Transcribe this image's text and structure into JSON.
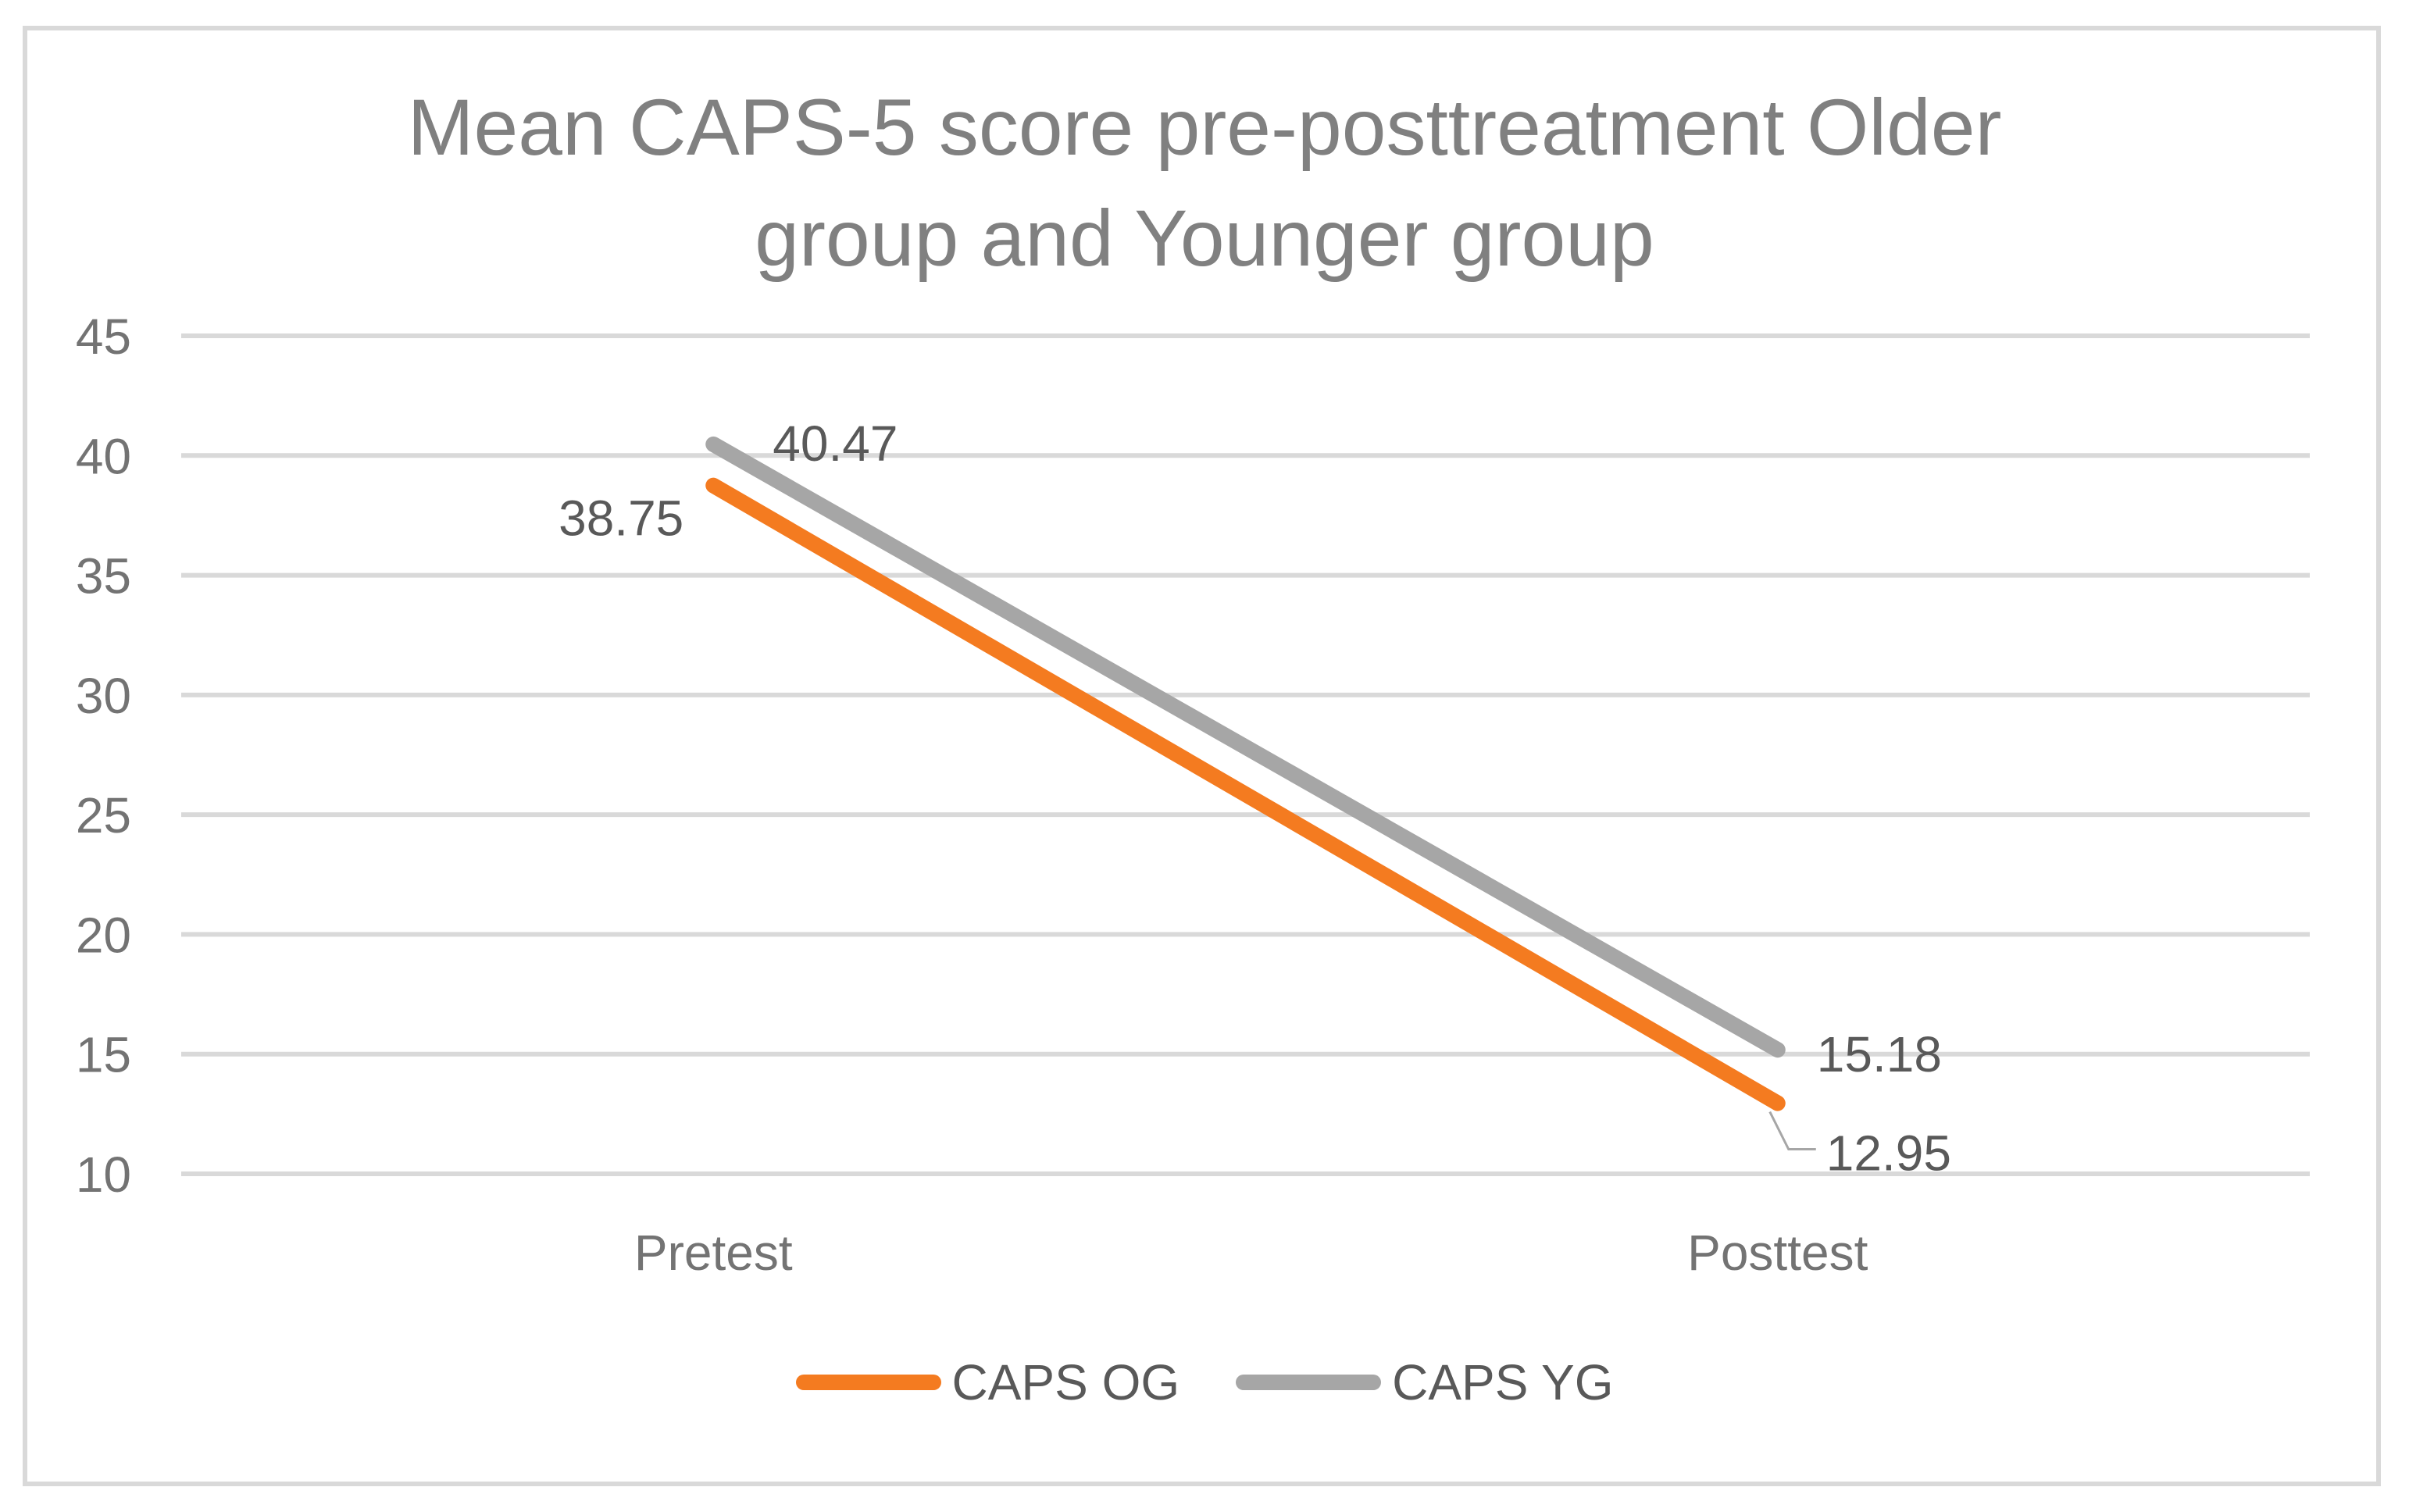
{
  "chart_data": {
    "type": "line",
    "title": "Mean CAPS-5 score pre-posttreatment Older group and Younger group",
    "title_lines": [
      "Mean CAPS-5 score pre-posttreatment Older",
      "group and Younger group"
    ],
    "categories": [
      "Pretest",
      "Posttest"
    ],
    "series": [
      {
        "name": "CAPS OG",
        "values": [
          38.75,
          12.95
        ],
        "data_labels": [
          "38.75",
          "12.95"
        ],
        "color": "#F47B20"
      },
      {
        "name": "CAPS YG",
        "values": [
          40.47,
          15.18
        ],
        "data_labels": [
          "40.47",
          "15.18"
        ],
        "color": "#A6A6A6"
      }
    ],
    "y_axis": {
      "min": 10,
      "max": 45,
      "step": 5,
      "ticks": [
        45,
        40,
        35,
        30,
        25,
        20,
        15,
        10
      ]
    },
    "x_axis": {
      "labels": [
        "Pretest",
        "Posttest"
      ]
    },
    "grid": true,
    "legend_position": "bottom",
    "colors": {
      "gridline": "#D9D9D9",
      "frame_border": "#D9D9D9",
      "title_text": "#808080",
      "axis_text": "#737373",
      "data_label_text": "#595959",
      "leader_line": "#A6A6A6"
    }
  }
}
